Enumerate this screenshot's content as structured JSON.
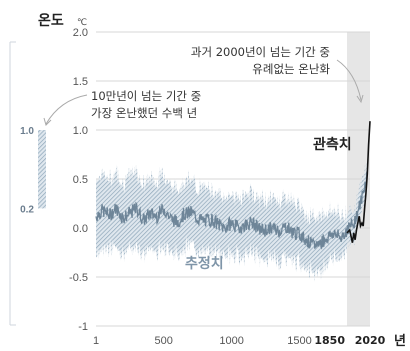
{
  "chart_data": {
    "type": "line",
    "ylabel": "온도",
    "yunit": "℃",
    "xunit": "년",
    "ylim": [
      -1,
      2
    ],
    "yticks": [
      "2.0",
      "1.5",
      "1.0",
      "0.5",
      "0.0",
      "-0.5",
      "-1"
    ],
    "xticks": [
      "1",
      "500",
      "1000",
      "1500"
    ],
    "xticks_bold": [
      "1850",
      "2020"
    ],
    "shade_range": [
      1850,
      2020
    ],
    "colors": {
      "estimate": "#7b93a8",
      "band": "#a8bccb",
      "observed": "#111111",
      "shade": "#e6e6e6"
    },
    "series": [
      {
        "name": "추정치",
        "x": [
          1,
          50,
          100,
          150,
          200,
          250,
          300,
          350,
          400,
          450,
          500,
          550,
          600,
          650,
          700,
          750,
          800,
          850,
          900,
          950,
          1000,
          1050,
          1100,
          1150,
          1200,
          1250,
          1300,
          1350,
          1400,
          1450,
          1500,
          1550,
          1600,
          1650,
          1700,
          1750,
          1800,
          1850,
          1900,
          1950,
          2000
        ],
        "values": [
          0.12,
          0.18,
          0.13,
          0.2,
          0.1,
          0.15,
          0.2,
          0.08,
          0.15,
          0.12,
          0.2,
          0.1,
          0.06,
          0.14,
          0.16,
          0.1,
          0.07,
          0.09,
          0.04,
          0.0,
          0.05,
          0.0,
          0.03,
          0.06,
          -0.01,
          -0.02,
          0.0,
          -0.03,
          0.02,
          -0.04,
          -0.06,
          -0.12,
          -0.18,
          -0.15,
          -0.1,
          -0.05,
          -0.1,
          -0.02,
          0.05,
          0.25,
          0.55
        ],
        "band": [
          0.38,
          0.38,
          0.35,
          0.38,
          0.36,
          0.38,
          0.38,
          0.35,
          0.36,
          0.35,
          0.37,
          0.34,
          0.33,
          0.33,
          0.33,
          0.32,
          0.32,
          0.32,
          0.3,
          0.3,
          0.3,
          0.3,
          0.3,
          0.3,
          0.3,
          0.3,
          0.3,
          0.3,
          0.3,
          0.3,
          0.28,
          0.28,
          0.28,
          0.28,
          0.26,
          0.24,
          0.22,
          0.18,
          0.15,
          0.15,
          0.15
        ]
      },
      {
        "name": "관측치",
        "x": [
          1850,
          1870,
          1890,
          1900,
          1910,
          1920,
          1930,
          1940,
          1950,
          1960,
          1970,
          1980,
          1990,
          2000,
          2010,
          2020
        ],
        "values": [
          -0.05,
          -0.02,
          -0.15,
          -0.05,
          -0.12,
          -0.02,
          0.05,
          0.12,
          0.02,
          0.05,
          0.02,
          0.2,
          0.35,
          0.55,
          0.85,
          1.09
        ]
      }
    ],
    "side_scale": {
      "range": [
        0.2,
        1.0
      ],
      "ticks": [
        "1.0",
        "0.2"
      ]
    },
    "annotations": [
      {
        "lines": [
          "과거 2000년이 넘는 기간 중",
          "유례없는 온난화"
        ]
      },
      {
        "lines": [
          "10만년이 넘는 기간 중",
          "가장 온난했던 수백 년"
        ]
      }
    ]
  }
}
